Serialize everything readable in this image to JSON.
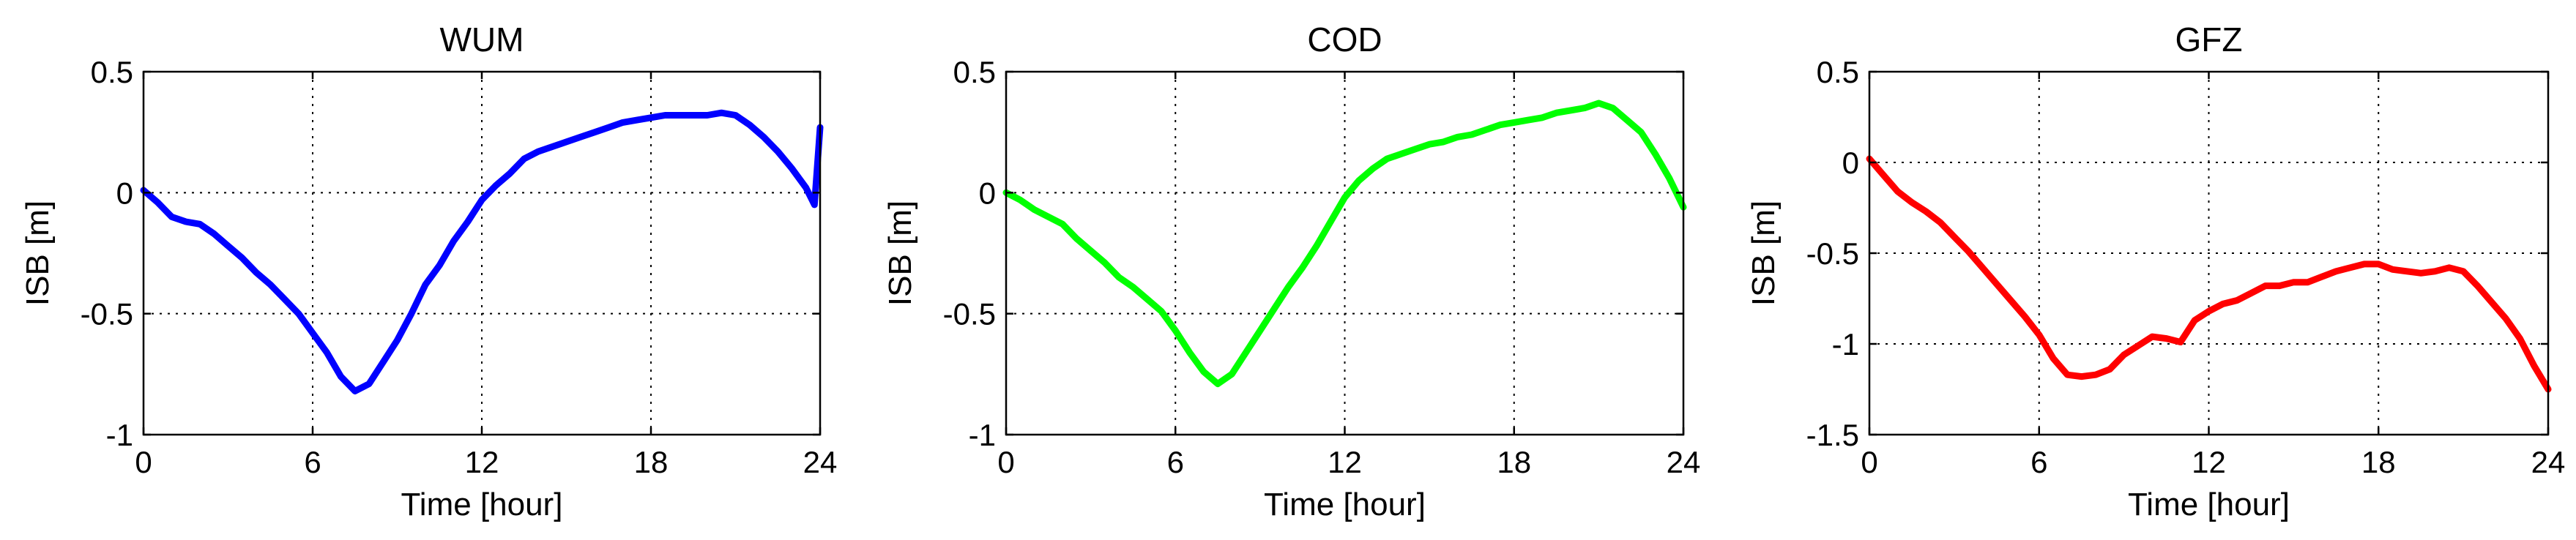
{
  "chart_data": [
    {
      "type": "line",
      "title": "WUM",
      "xlabel": "Time [hour]",
      "ylabel": "ISB [m]",
      "xlim": [
        0,
        24
      ],
      "ylim": [
        -1,
        0.5
      ],
      "xticks": [
        0,
        6,
        12,
        18,
        24
      ],
      "yticks": [
        -1,
        -0.5,
        0,
        0.5
      ],
      "xtick_labels": [
        "0",
        "6",
        "12",
        "18",
        "24"
      ],
      "ytick_labels": [
        "-1",
        "-0.5",
        "0",
        "0.5"
      ],
      "grid": true,
      "series": [
        {
          "color": "#0000ff",
          "x": [
            0,
            0.5,
            1,
            1.5,
            2,
            2.5,
            3,
            3.5,
            4,
            4.5,
            5,
            5.5,
            6,
            6.5,
            7,
            7.5,
            8,
            8.5,
            9,
            9.5,
            10,
            10.5,
            11,
            11.5,
            12,
            12.5,
            13,
            13.5,
            14,
            14.5,
            15,
            15.5,
            16,
            16.5,
            17,
            17.5,
            18,
            18.5,
            19,
            19.5,
            20,
            20.5,
            21,
            21.5,
            22,
            22.5,
            23,
            23.5,
            23.8,
            24
          ],
          "y": [
            0.01,
            -0.04,
            -0.1,
            -0.12,
            -0.13,
            -0.17,
            -0.22,
            -0.27,
            -0.33,
            -0.38,
            -0.44,
            -0.5,
            -0.58,
            -0.66,
            -0.76,
            -0.82,
            -0.79,
            -0.7,
            -0.61,
            -0.5,
            -0.38,
            -0.3,
            -0.2,
            -0.12,
            -0.03,
            0.03,
            0.08,
            0.14,
            0.17,
            0.19,
            0.21,
            0.23,
            0.25,
            0.27,
            0.29,
            0.3,
            0.31,
            0.32,
            0.32,
            0.32,
            0.32,
            0.33,
            0.32,
            0.28,
            0.23,
            0.17,
            0.1,
            0.02,
            -0.05,
            0.27
          ]
        }
      ]
    },
    {
      "type": "line",
      "title": "COD",
      "xlabel": "Time [hour]",
      "ylabel": "ISB [m]",
      "xlim": [
        0,
        24
      ],
      "ylim": [
        -1,
        0.5
      ],
      "xticks": [
        0,
        6,
        12,
        18,
        24
      ],
      "yticks": [
        -1,
        -0.5,
        0,
        0.5
      ],
      "xtick_labels": [
        "0",
        "6",
        "12",
        "18",
        "24"
      ],
      "ytick_labels": [
        "-1",
        "-0.5",
        "0",
        "0.5"
      ],
      "grid": true,
      "series": [
        {
          "color": "#00ff00",
          "x": [
            0,
            0.5,
            1,
            1.5,
            2,
            2.5,
            3,
            3.5,
            4,
            4.5,
            5,
            5.5,
            6,
            6.5,
            7,
            7.5,
            8,
            8.5,
            9,
            9.5,
            10,
            10.5,
            11,
            11.5,
            12,
            12.5,
            13,
            13.5,
            14,
            14.5,
            15,
            15.5,
            16,
            16.5,
            17,
            17.5,
            18,
            18.5,
            19,
            19.5,
            20,
            20.5,
            21,
            21.5,
            22,
            22.5,
            23,
            23.5,
            24
          ],
          "y": [
            0,
            -0.03,
            -0.07,
            -0.1,
            -0.13,
            -0.19,
            -0.24,
            -0.29,
            -0.35,
            -0.39,
            -0.44,
            -0.49,
            -0.57,
            -0.66,
            -0.74,
            -0.79,
            -0.75,
            -0.66,
            -0.57,
            -0.48,
            -0.39,
            -0.31,
            -0.22,
            -0.12,
            -0.02,
            0.05,
            0.1,
            0.14,
            0.16,
            0.18,
            0.2,
            0.21,
            0.23,
            0.24,
            0.26,
            0.28,
            0.29,
            0.3,
            0.31,
            0.33,
            0.34,
            0.35,
            0.37,
            0.35,
            0.3,
            0.25,
            0.16,
            0.06,
            -0.06
          ]
        }
      ]
    },
    {
      "type": "line",
      "title": "GFZ",
      "xlabel": "Time [hour]",
      "ylabel": "ISB [m]",
      "xlim": [
        0,
        24
      ],
      "ylim": [
        -1.5,
        0.5
      ],
      "xticks": [
        0,
        6,
        12,
        18,
        24
      ],
      "yticks": [
        -1.5,
        -1,
        -0.5,
        0,
        0.5
      ],
      "xtick_labels": [
        "0",
        "6",
        "12",
        "18",
        "24"
      ],
      "ytick_labels": [
        "-1.5",
        "-1",
        "-0.5",
        "0",
        "0.5"
      ],
      "grid": true,
      "series": [
        {
          "color": "#ff0000",
          "x": [
            0,
            0.5,
            1,
            1.5,
            2,
            2.5,
            3,
            3.5,
            4,
            4.5,
            5,
            5.5,
            6,
            6.5,
            7,
            7.5,
            8,
            8.5,
            9,
            9.5,
            10,
            10.5,
            11,
            11.5,
            12,
            12.5,
            13,
            13.5,
            14,
            14.5,
            15,
            15.5,
            16,
            16.5,
            17,
            17.5,
            18,
            18.5,
            19,
            19.5,
            20,
            20.5,
            21,
            21.5,
            22,
            22.5,
            23,
            23.5,
            24
          ],
          "y": [
            0.02,
            -0.07,
            -0.16,
            -0.22,
            -0.27,
            -0.33,
            -0.41,
            -0.49,
            -0.58,
            -0.67,
            -0.76,
            -0.85,
            -0.95,
            -1.08,
            -1.17,
            -1.18,
            -1.17,
            -1.14,
            -1.06,
            -1.01,
            -0.96,
            -0.97,
            -0.99,
            -0.87,
            -0.82,
            -0.78,
            -0.76,
            -0.72,
            -0.68,
            -0.68,
            -0.66,
            -0.66,
            -0.63,
            -0.6,
            -0.58,
            -0.56,
            -0.56,
            -0.59,
            -0.6,
            -0.61,
            -0.6,
            -0.58,
            -0.6,
            -0.68,
            -0.77,
            -0.86,
            -0.97,
            -1.12,
            -1.25
          ]
        }
      ]
    }
  ]
}
